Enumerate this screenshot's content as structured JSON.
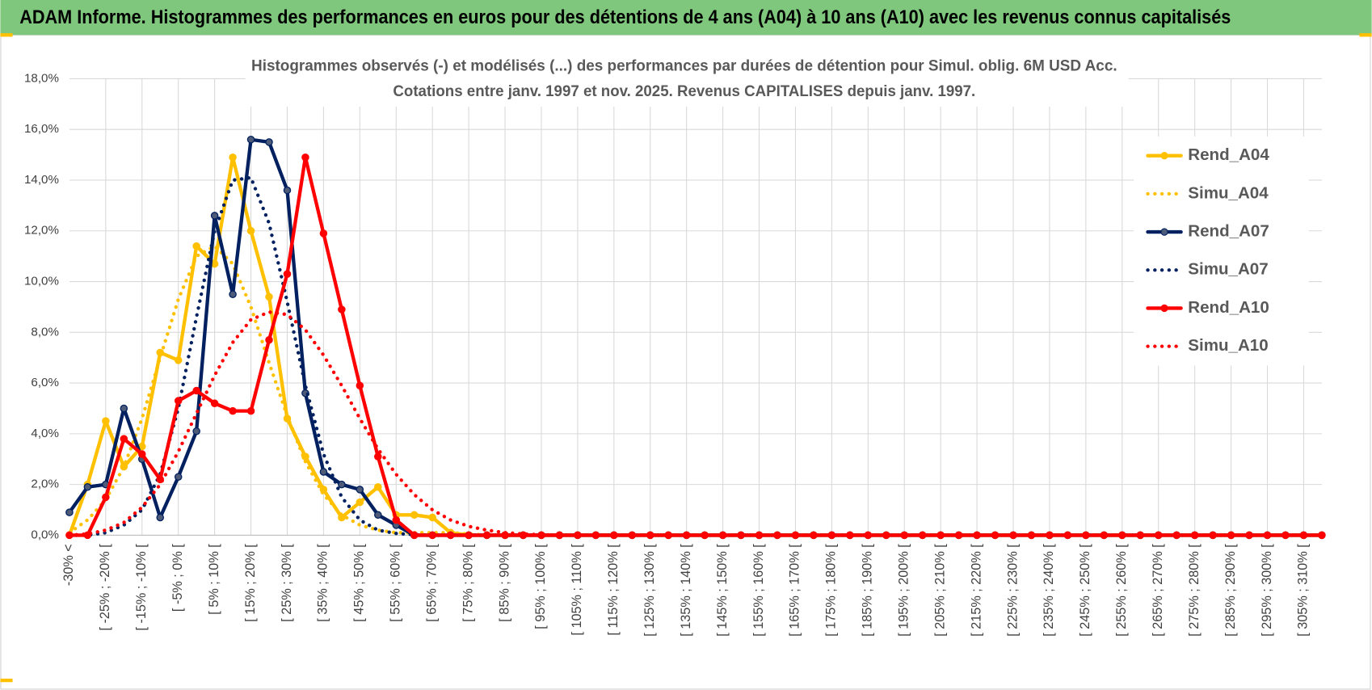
{
  "chart_data": {
    "type": "line",
    "header": "ADAM Informe. Histogrammes des performances en euros pour des détentions de 4 ans (A04) à 10 ans (A10) avec les revenus connus capitalisés",
    "title": [
      "Histogrammes observés (-) et modélisés (...) des performances par durées de détention pour Simul. oblig. 6M USD Acc.",
      "Cotations entre janv. 1997 et nov. 2025. Revenus CAPITALISES depuis janv. 1997."
    ],
    "categories": [
      "-30% <",
      null,
      "[ -25% ; -20% [",
      null,
      "[ -15% ; -10% [",
      null,
      "[ -5% ; 0% [",
      null,
      "[ 5% ; 10% [",
      null,
      "[ 15% ; 20% [",
      null,
      "[ 25% ; 30% [",
      null,
      "[ 35% ; 40% [",
      null,
      "[ 45% ; 50% [",
      null,
      "[ 55% ; 60% [",
      null,
      "[ 65% ; 70% [",
      null,
      "[ 75% ; 80% [",
      null,
      "[ 85% ; 90% [",
      null,
      "[ 95% ; 100% [",
      null,
      "[ 105% ; 110% [",
      null,
      "[ 115% ; 120% [",
      null,
      "[ 125% ; 130% [",
      null,
      "[ 135% ; 140% [",
      null,
      "[ 145% ; 150% [",
      null,
      "[ 155% ; 160% [",
      null,
      "[ 165% ; 170% [",
      null,
      "[ 175% ; 180% [",
      null,
      "[ 185% ; 190% [",
      null,
      "[ 195% ; 200% [",
      null,
      "[ 205% ; 210% [",
      null,
      "[ 215% ; 220% [",
      null,
      "[ 225% ; 230% [",
      null,
      "[ 235% ; 240% [",
      null,
      "[ 245% ; 250% [",
      null,
      "[ 255% ; 260% [",
      null,
      "[ 265% ; 270% [",
      null,
      "[ 275% ; 280% [",
      null,
      "[ 285% ; 290% [",
      null,
      "[ 295% ; 300% [",
      null,
      "[ 305% ; 310% [",
      null
    ],
    "ylim": [
      0,
      18
    ],
    "yticks": [
      {
        "value": 0,
        "label": "0,0%"
      },
      {
        "value": 2,
        "label": "2,0%"
      },
      {
        "value": 4,
        "label": "4,0%"
      },
      {
        "value": 6,
        "label": "6,0%"
      },
      {
        "value": 8,
        "label": "8,0%"
      },
      {
        "value": 10,
        "label": "10,0%"
      },
      {
        "value": 12,
        "label": "12,0%"
      },
      {
        "value": 14,
        "label": "14,0%"
      },
      {
        "value": 16,
        "label": "16,0%"
      },
      {
        "value": 18,
        "label": "18,0%"
      }
    ],
    "grid": true,
    "legend": "right",
    "series": [
      {
        "name": "Rend_A04",
        "color": "#ffc000",
        "style": "solid",
        "values": [
          0,
          2.0,
          4.5,
          2.7,
          3.5,
          7.2,
          6.9,
          11.4,
          10.7,
          14.9,
          12.0,
          9.4,
          4.6,
          3.1,
          1.8,
          0.7,
          1.3,
          1.9,
          0.8,
          0.8,
          0.7,
          0.1,
          0,
          0,
          0,
          0,
          0,
          0,
          0,
          0,
          0,
          0,
          0,
          0,
          0,
          0,
          0,
          0,
          0,
          0,
          0,
          0,
          0,
          0,
          0,
          0,
          0,
          0,
          0,
          0,
          0,
          0,
          0,
          0,
          0,
          0,
          0,
          0,
          0,
          0,
          0,
          0,
          0,
          0,
          0,
          0,
          0,
          0,
          0,
          0
        ]
      },
      {
        "name": "Simu_A04",
        "color": "#ffc000",
        "style": "dotted",
        "values": [
          0.1,
          0.6,
          1.4,
          2.7,
          4.6,
          7.0,
          9.3,
          11.0,
          11.4,
          10.7,
          9.0,
          6.8,
          4.7,
          2.9,
          1.6,
          0.8,
          0.4,
          0.2,
          0.1,
          0.1,
          0.1,
          0.1,
          0.05,
          0,
          0,
          0,
          0,
          0,
          0,
          0,
          0,
          0,
          0,
          0,
          0,
          0,
          0,
          0,
          0,
          0,
          0,
          0,
          0,
          0,
          0,
          0,
          0,
          0,
          0,
          0,
          0,
          0,
          0,
          0,
          0,
          0,
          0,
          0,
          0,
          0,
          0,
          0,
          0,
          0,
          0,
          0,
          0,
          0,
          0,
          0
        ]
      },
      {
        "name": "Rend_A07",
        "color": "#002060",
        "style": "solid",
        "values": [
          0.9,
          1.9,
          2.0,
          5.0,
          3.0,
          0.7,
          2.3,
          4.1,
          12.6,
          9.5,
          15.6,
          15.5,
          13.6,
          5.6,
          2.5,
          2.0,
          1.8,
          0.8,
          0.4,
          0,
          0,
          0,
          0,
          0,
          0,
          0,
          0,
          0,
          0,
          0,
          0,
          0,
          0,
          0,
          0,
          0,
          0,
          0,
          0,
          0,
          0,
          0,
          0,
          0,
          0,
          0,
          0,
          0,
          0,
          0,
          0,
          0,
          0,
          0,
          0,
          0,
          0,
          0,
          0,
          0,
          0,
          0,
          0,
          0,
          0,
          0,
          0,
          0,
          0,
          0
        ]
      },
      {
        "name": "Simu_A07",
        "color": "#002060",
        "style": "dotted",
        "values": [
          0,
          0,
          0.1,
          0.4,
          1.0,
          2.4,
          5.0,
          8.6,
          12.0,
          14.0,
          14.1,
          12.3,
          9.2,
          5.9,
          3.2,
          1.5,
          0.6,
          0.2,
          0.07,
          0.02,
          0,
          0,
          0,
          0,
          0,
          0,
          0,
          0,
          0,
          0,
          0,
          0,
          0,
          0,
          0,
          0,
          0,
          0,
          0,
          0,
          0,
          0,
          0,
          0,
          0,
          0,
          0,
          0,
          0,
          0,
          0,
          0,
          0,
          0,
          0,
          0,
          0,
          0,
          0,
          0,
          0,
          0,
          0,
          0,
          0,
          0,
          0,
          0,
          0,
          0
        ]
      },
      {
        "name": "Rend_A10",
        "color": "#ff0000",
        "style": "solid",
        "values": [
          0,
          0,
          1.5,
          3.8,
          3.2,
          2.2,
          5.3,
          5.7,
          5.2,
          4.9,
          4.9,
          7.7,
          10.3,
          14.9,
          11.9,
          8.9,
          5.9,
          3.1,
          0.6,
          0,
          0,
          0,
          0,
          0,
          0,
          0,
          0,
          0,
          0,
          0,
          0,
          0,
          0,
          0,
          0,
          0,
          0,
          0,
          0,
          0,
          0,
          0,
          0,
          0,
          0,
          0,
          0,
          0,
          0,
          0,
          0,
          0,
          0,
          0,
          0,
          0,
          0,
          0,
          0,
          0,
          0,
          0,
          0,
          0,
          0,
          0,
          0,
          0,
          0,
          0
        ]
      },
      {
        "name": "Simu_A10",
        "color": "#ff0000",
        "style": "dotted",
        "values": [
          0,
          0.05,
          0.2,
          0.5,
          1.1,
          2.0,
          3.3,
          4.8,
          6.3,
          7.6,
          8.5,
          8.8,
          8.7,
          8.1,
          7.1,
          5.9,
          4.6,
          3.4,
          2.4,
          1.6,
          1.0,
          0.6,
          0.35,
          0.2,
          0.1,
          0.05,
          0.02,
          0,
          0,
          0,
          0,
          0,
          0,
          0,
          0,
          0,
          0,
          0,
          0,
          0,
          0,
          0,
          0,
          0,
          0,
          0,
          0,
          0,
          0,
          0,
          0,
          0,
          0,
          0,
          0,
          0,
          0,
          0,
          0,
          0,
          0,
          0,
          0,
          0,
          0,
          0,
          0,
          0,
          0,
          0
        ]
      }
    ]
  }
}
